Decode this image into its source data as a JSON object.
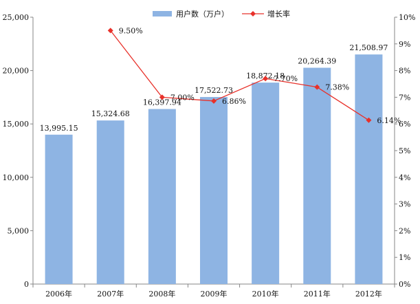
{
  "chart_data": {
    "type": "bar",
    "categories": [
      "2006年",
      "2007年",
      "2008年",
      "2009年",
      "2010年",
      "2011年",
      "2012年"
    ],
    "series": [
      {
        "name": "用户数（万户）",
        "type": "bar",
        "axis": "left",
        "color": "#8eb4e3",
        "values": [
          13995.15,
          15324.68,
          16397.94,
          17522.73,
          18872.18,
          20264.39,
          21508.97
        ],
        "labels": [
          "13,995.15",
          "15,324.68",
          "16,397.94",
          "17,522.73",
          "18,872.18",
          "20,264.39",
          "21,508.97"
        ]
      },
      {
        "name": "增长率",
        "type": "line",
        "axis": "right",
        "color": "#e8312a",
        "values": [
          null,
          9.5,
          7.0,
          6.86,
          7.7,
          7.38,
          6.14
        ],
        "labels": [
          "",
          "9.50%",
          "7.00%",
          "6.86%",
          "7.70%",
          "7.38%",
          "6.14%"
        ]
      }
    ],
    "y_left": {
      "range": [
        0,
        25000
      ],
      "ticks": [
        0,
        5000,
        10000,
        15000,
        20000,
        25000
      ],
      "tick_labels": [
        "0",
        "5,000",
        "10,000",
        "15,000",
        "20,000",
        "25,000"
      ]
    },
    "y_right": {
      "range": [
        0,
        10
      ],
      "ticks": [
        0,
        1,
        2,
        3,
        4,
        5,
        6,
        7,
        8,
        9,
        10
      ],
      "tick_labels": [
        "0%",
        "1%",
        "2%",
        "3%",
        "4%",
        "5%",
        "6%",
        "7%",
        "8%",
        "9%",
        "10%"
      ]
    },
    "grid": false,
    "legend_position": "top-center"
  }
}
